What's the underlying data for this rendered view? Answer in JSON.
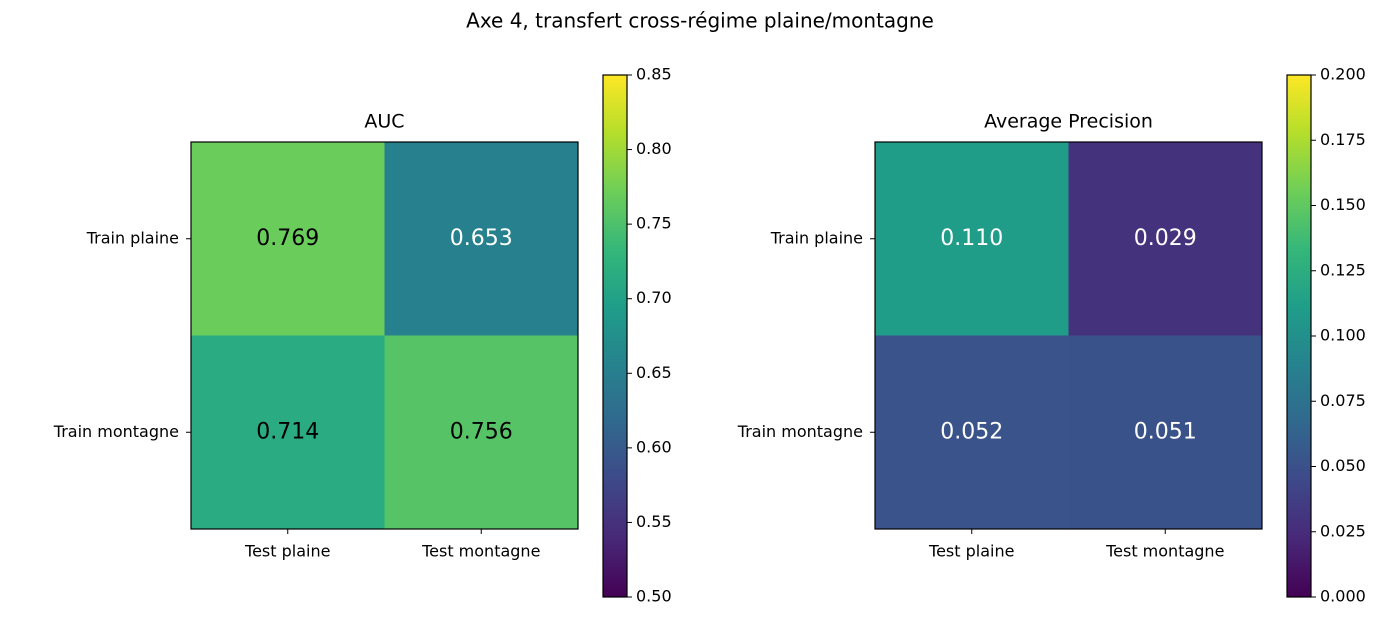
{
  "title": "Axe 4, transfert cross-régime plaine/montagne",
  "chart_data": [
    {
      "type": "heatmap",
      "title": "AUC",
      "x_categories": [
        "Test plaine",
        "Test montagne"
      ],
      "y_categories": [
        "Train plaine",
        "Train montagne"
      ],
      "values": [
        [
          0.769,
          0.653
        ],
        [
          0.714,
          0.756
        ]
      ],
      "value_labels": [
        [
          "0.769",
          "0.653"
        ],
        [
          "0.714",
          "0.756"
        ]
      ],
      "cmap": "viridis",
      "zlim": [
        0.5,
        0.85
      ],
      "zticks": [
        {
          "value": 0.5,
          "label": "0.50"
        },
        {
          "value": 0.55,
          "label": "0.55"
        },
        {
          "value": 0.6,
          "label": "0.60"
        },
        {
          "value": 0.65,
          "label": "0.65"
        },
        {
          "value": 0.7,
          "label": "0.70"
        },
        {
          "value": 0.75,
          "label": "0.75"
        },
        {
          "value": 0.8,
          "label": "0.80"
        },
        {
          "value": 0.85,
          "label": "0.85"
        }
      ]
    },
    {
      "type": "heatmap",
      "title": "Average Precision",
      "x_categories": [
        "Test plaine",
        "Test montagne"
      ],
      "y_categories": [
        "Train plaine",
        "Train montagne"
      ],
      "values": [
        [
          0.11,
          0.029
        ],
        [
          0.052,
          0.051
        ]
      ],
      "value_labels": [
        [
          "0.110",
          "0.029"
        ],
        [
          "0.052",
          "0.051"
        ]
      ],
      "cmap": "viridis",
      "zlim": [
        0,
        0.2
      ],
      "zticks": [
        {
          "value": 0,
          "label": "0.000"
        },
        {
          "value": 0.025,
          "label": "0.025"
        },
        {
          "value": 0.05,
          "label": "0.050"
        },
        {
          "value": 0.075,
          "label": "0.075"
        },
        {
          "value": 0.1,
          "label": "0.100"
        },
        {
          "value": 0.125,
          "label": "0.125"
        },
        {
          "value": 0.15,
          "label": "0.150"
        },
        {
          "value": 0.175,
          "label": "0.175"
        },
        {
          "value": 0.2,
          "label": "0.200"
        }
      ]
    }
  ]
}
